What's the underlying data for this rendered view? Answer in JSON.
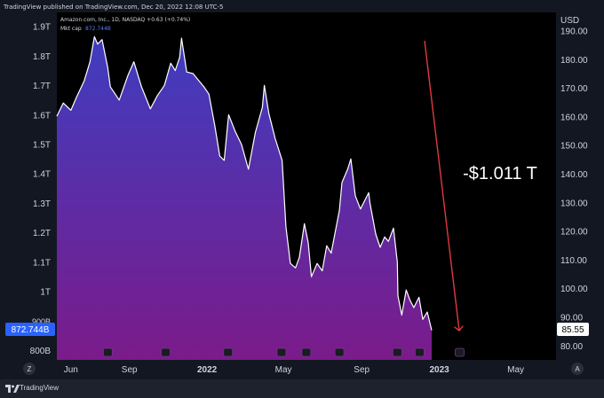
{
  "published_by": "TradingView published on TradingView.com, Dec 20, 2022 12:08 UTC-5",
  "footer_brand": "TradingView",
  "legend": {
    "symbol_line": "Amazon.com, Inc., 1D, NASDAQ +0.63 (+0.74%)",
    "mktcap_label": "Mkt cap",
    "mktcap_value": "872.744B"
  },
  "left_axis_labels": [
    "1.9T",
    "1.8T",
    "1.7T",
    "1.6T",
    "1.5T",
    "1.4T",
    "1.3T",
    "1.2T",
    "1.1T",
    "1T",
    "900B",
    "800B"
  ],
  "right_axis_unit": "USD",
  "right_axis_labels": [
    "190.00",
    "180.00",
    "170.00",
    "160.00",
    "150.00",
    "140.00",
    "130.00",
    "120.00",
    "110.00",
    "100.00",
    "90.00",
    "80.00"
  ],
  "time_labels": [
    "Jun",
    "Sep",
    "2022",
    "May",
    "Sep",
    "2023",
    "May"
  ],
  "corner_buttons": {
    "left": "Z",
    "right": "A"
  },
  "last_value_left": "872.744B",
  "last_value_right": "85.55",
  "annotation": "-$1.011 T",
  "colors": {
    "background": "#000000",
    "line": "#ffffff",
    "fill_top": "#3f3dc0",
    "fill_bottom": "#7b1b8a",
    "arrow": "#e0393e",
    "axis_text": "#d1d4dc"
  },
  "chart_data": {
    "type": "area",
    "title": "Amazon.com, Inc., 1D, NASDAQ",
    "ylabel_left": "Mkt cap",
    "ylabel_right": "USD",
    "ylim_left": [
      0.77,
      1.95
    ],
    "unit_left": "T",
    "x_start": "2021-05-10",
    "x_end": "2022-12-20",
    "series": [
      {
        "name": "Mkt cap",
        "points": [
          [
            "2021-05-10",
            1.6
          ],
          [
            "2021-05-20",
            1.64
          ],
          [
            "2021-06-01",
            1.62
          ],
          [
            "2021-06-10",
            1.66
          ],
          [
            "2021-06-22",
            1.72
          ],
          [
            "2021-07-01",
            1.78
          ],
          [
            "2021-07-08",
            1.87
          ],
          [
            "2021-07-13",
            1.84
          ],
          [
            "2021-07-20",
            1.86
          ],
          [
            "2021-07-29",
            1.76
          ],
          [
            "2021-08-02",
            1.7
          ],
          [
            "2021-08-16",
            1.65
          ],
          [
            "2021-08-30",
            1.74
          ],
          [
            "2021-09-08",
            1.78
          ],
          [
            "2021-09-20",
            1.7
          ],
          [
            "2021-10-04",
            1.62
          ],
          [
            "2021-10-15",
            1.67
          ],
          [
            "2021-10-26",
            1.7
          ],
          [
            "2021-11-05",
            1.78
          ],
          [
            "2021-11-12",
            1.75
          ],
          [
            "2021-11-19",
            1.8
          ],
          [
            "2021-11-22",
            1.86
          ],
          [
            "2021-11-30",
            1.75
          ],
          [
            "2021-12-10",
            1.74
          ],
          [
            "2021-12-27",
            1.7
          ],
          [
            "2022-01-04",
            1.67
          ],
          [
            "2022-01-13",
            1.57
          ],
          [
            "2022-01-21",
            1.46
          ],
          [
            "2022-01-28",
            1.45
          ],
          [
            "2022-02-04",
            1.6
          ],
          [
            "2022-02-14",
            1.55
          ],
          [
            "2022-02-24",
            1.5
          ],
          [
            "2022-03-07",
            1.42
          ],
          [
            "2022-03-18",
            1.54
          ],
          [
            "2022-03-29",
            1.63
          ],
          [
            "2022-04-01",
            1.7
          ],
          [
            "2022-04-08",
            1.61
          ],
          [
            "2022-04-18",
            1.52
          ],
          [
            "2022-04-29",
            1.45
          ],
          [
            "2022-05-05",
            1.22
          ],
          [
            "2022-05-12",
            1.1
          ],
          [
            "2022-05-20",
            1.08
          ],
          [
            "2022-05-26",
            1.12
          ],
          [
            "2022-06-03",
            1.23
          ],
          [
            "2022-06-09",
            1.17
          ],
          [
            "2022-06-14",
            1.05
          ],
          [
            "2022-06-23",
            1.1
          ],
          [
            "2022-07-01",
            1.07
          ],
          [
            "2022-07-08",
            1.16
          ],
          [
            "2022-07-15",
            1.13
          ],
          [
            "2022-07-28",
            1.28
          ],
          [
            "2022-08-01",
            1.37
          ],
          [
            "2022-08-10",
            1.42
          ],
          [
            "2022-08-15",
            1.45
          ],
          [
            "2022-08-22",
            1.33
          ],
          [
            "2022-08-30",
            1.28
          ],
          [
            "2022-09-12",
            1.34
          ],
          [
            "2022-09-14",
            1.3
          ],
          [
            "2022-09-23",
            1.2
          ],
          [
            "2022-09-30",
            1.15
          ],
          [
            "2022-10-07",
            1.19
          ],
          [
            "2022-10-13",
            1.17
          ],
          [
            "2022-10-21",
            1.22
          ],
          [
            "2022-10-27",
            1.1
          ],
          [
            "2022-10-28",
            0.99
          ],
          [
            "2022-11-03",
            0.92
          ],
          [
            "2022-11-10",
            1.01
          ],
          [
            "2022-11-16",
            0.97
          ],
          [
            "2022-11-22",
            0.95
          ],
          [
            "2022-11-30",
            0.98
          ],
          [
            "2022-12-06",
            0.91
          ],
          [
            "2022-12-13",
            0.93
          ],
          [
            "2022-12-20",
            0.873
          ]
        ]
      }
    ],
    "annotation": {
      "text": "-$1.011 T"
    }
  }
}
